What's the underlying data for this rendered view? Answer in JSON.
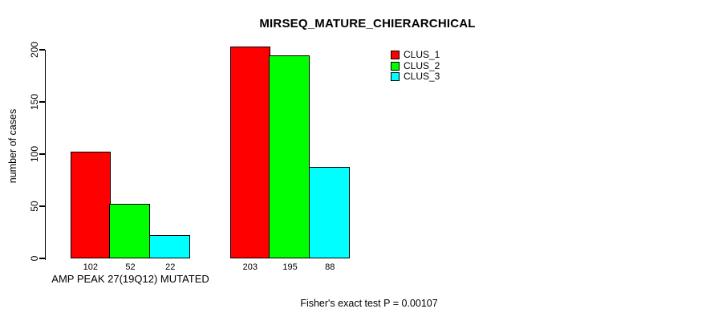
{
  "chart_data": {
    "type": "bar",
    "title": "MIRSEQ_MATURE_CHIERARCHICAL",
    "xlabel": "",
    "ylabel": "number of cases",
    "ylim": [
      0,
      200
    ],
    "yticks": [
      0,
      50,
      100,
      150,
      200
    ],
    "grid": false,
    "legend_position": "top-right",
    "categories": [
      "AMP PEAK 27(19Q12) MUTATED",
      ""
    ],
    "series": [
      {
        "name": "CLUS_1",
        "color": "#ff0000",
        "values": [
          102,
          203
        ]
      },
      {
        "name": "CLUS_2",
        "color": "#00ff00",
        "values": [
          52,
          195
        ]
      },
      {
        "name": "CLUS_3",
        "color": "#00ffff",
        "values": [
          22,
          88
        ]
      }
    ],
    "annotation": "Fisher's exact test P = 0.00107"
  },
  "colors": {
    "background": "#ffffff",
    "text": "#000000",
    "bar_border": "#000000"
  }
}
